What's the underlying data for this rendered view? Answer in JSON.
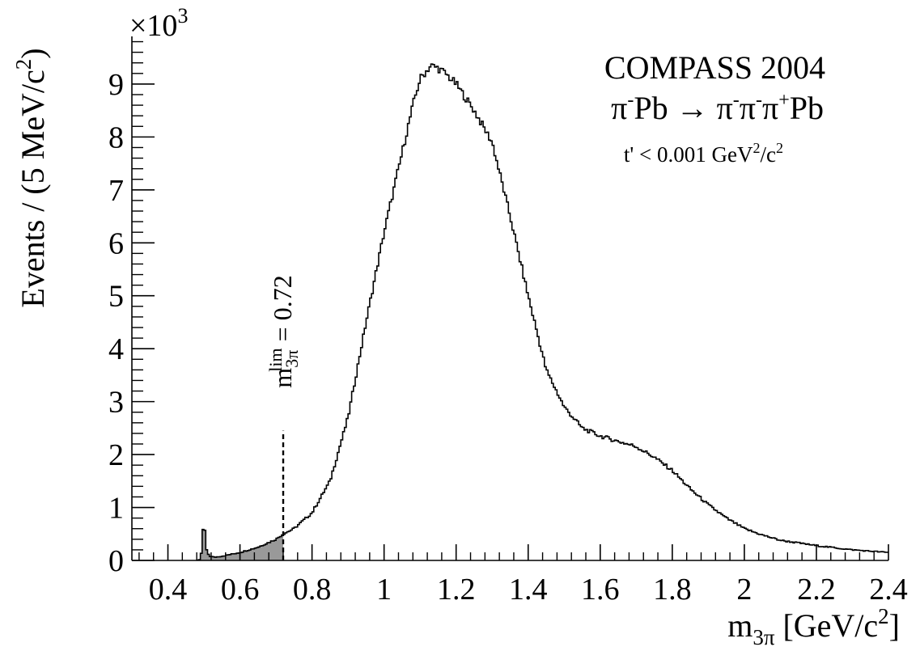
{
  "chart_data": {
    "type": "histogram",
    "xlabel": {
      "main": "m",
      "sub": "3π",
      "rest": " [GeV/c",
      "sup": "2",
      "end": "]"
    },
    "ylabel": "Events / (5 MeV/c",
    "ylabel_sup": "2",
    "ylabel_end": ")",
    "y_multiplier": {
      "prefix": "×10",
      "exp": "3"
    },
    "xlim": [
      0.3,
      2.4
    ],
    "ylim": [
      0,
      9.9
    ],
    "bin_width_gev": 0.005,
    "x_ticks": [
      {
        "value": 0.4,
        "label": "0.4"
      },
      {
        "value": 0.6,
        "label": "0.6"
      },
      {
        "value": 0.8,
        "label": "0.8"
      },
      {
        "value": 1.0,
        "label": "1"
      },
      {
        "value": 1.2,
        "label": "1.2"
      },
      {
        "value": 1.4,
        "label": "1.4"
      },
      {
        "value": 1.6,
        "label": "1.6"
      },
      {
        "value": 1.8,
        "label": "1.8"
      },
      {
        "value": 2.0,
        "label": "2"
      },
      {
        "value": 2.2,
        "label": "2.2"
      },
      {
        "value": 2.4,
        "label": "2.4"
      }
    ],
    "y_ticks": [
      {
        "value": 0,
        "label": "0"
      },
      {
        "value": 1,
        "label": "1"
      },
      {
        "value": 2,
        "label": "2"
      },
      {
        "value": 3,
        "label": "3"
      },
      {
        "value": 4,
        "label": "4"
      },
      {
        "value": 5,
        "label": "5"
      },
      {
        "value": 6,
        "label": "6"
      },
      {
        "value": 7,
        "label": "7"
      },
      {
        "value": 8,
        "label": "8"
      },
      {
        "value": 9,
        "label": "9"
      }
    ],
    "curve_points": [
      [
        0.48,
        0
      ],
      [
        0.49,
        0.02
      ],
      [
        0.495,
        0.25
      ],
      [
        0.5,
        0.9
      ],
      [
        0.503,
        0.5
      ],
      [
        0.507,
        0.2
      ],
      [
        0.515,
        0.08
      ],
      [
        0.53,
        0.06
      ],
      [
        0.55,
        0.08
      ],
      [
        0.6,
        0.15
      ],
      [
        0.65,
        0.25
      ],
      [
        0.7,
        0.4
      ],
      [
        0.72,
        0.5
      ],
      [
        0.75,
        0.6
      ],
      [
        0.8,
        0.9
      ],
      [
        0.85,
        1.5
      ],
      [
        0.9,
        2.7
      ],
      [
        0.95,
        4.5
      ],
      [
        1.0,
        6.2
      ],
      [
        1.05,
        7.7
      ],
      [
        1.08,
        8.6
      ],
      [
        1.1,
        9.1
      ],
      [
        1.13,
        9.35
      ],
      [
        1.15,
        9.3
      ],
      [
        1.17,
        9.2
      ],
      [
        1.2,
        9.0
      ],
      [
        1.25,
        8.5
      ],
      [
        1.3,
        7.9
      ],
      [
        1.35,
        6.5
      ],
      [
        1.4,
        5.0
      ],
      [
        1.45,
        3.6
      ],
      [
        1.5,
        2.9
      ],
      [
        1.55,
        2.5
      ],
      [
        1.6,
        2.35
      ],
      [
        1.65,
        2.25
      ],
      [
        1.7,
        2.15
      ],
      [
        1.75,
        1.95
      ],
      [
        1.8,
        1.7
      ],
      [
        1.85,
        1.35
      ],
      [
        1.9,
        1.05
      ],
      [
        1.95,
        0.8
      ],
      [
        2.0,
        0.6
      ],
      [
        2.05,
        0.48
      ],
      [
        2.1,
        0.38
      ],
      [
        2.2,
        0.28
      ],
      [
        2.3,
        0.2
      ],
      [
        2.4,
        0.15
      ]
    ],
    "shaded_region": {
      "from": 0.48,
      "to": 0.72,
      "color": "#999999"
    },
    "line_color": "#000000",
    "cut_line": {
      "x": 0.72,
      "y_top": 2.45,
      "style": "dashed"
    },
    "cut_label": {
      "main": "m",
      "sub": "3π",
      "sup": "lim",
      "rest": " = 0.72"
    },
    "legend_text": {
      "line1": "COMPASS 2004",
      "line2": [
        {
          "t": "π"
        },
        {
          "t": "-",
          "sup": true
        },
        {
          "t": "Pb → π"
        },
        {
          "t": "-",
          "sup": true
        },
        {
          "t": "π"
        },
        {
          "t": "-",
          "sup": true
        },
        {
          "t": "π"
        },
        {
          "t": "+",
          "sup": true
        },
        {
          "t": "Pb"
        }
      ],
      "line3": [
        {
          "t": "t' < 0.001 GeV"
        },
        {
          "t": "2",
          "sup": true
        },
        {
          "t": "/c"
        },
        {
          "t": "2",
          "sup": true
        }
      ]
    }
  }
}
